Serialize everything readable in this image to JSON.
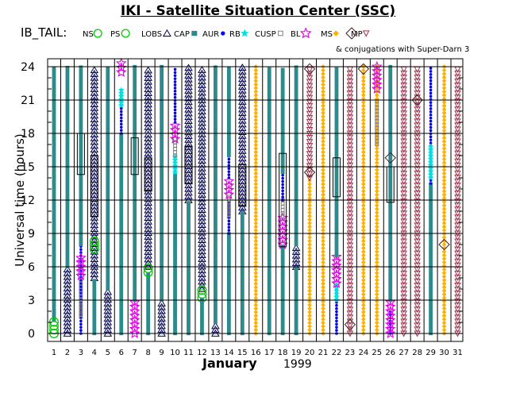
{
  "title": "IKI - Satellite Situation Center (SSC)",
  "chart_data": {
    "type": "scatter",
    "satellite_label": "IB_TAIL:",
    "ylabel": "Universal time (hours)",
    "xlabel_month": "January",
    "xlabel_year": "1999",
    "ylim": [
      0,
      24.5
    ],
    "y_ticks": [
      0,
      3,
      6,
      9,
      12,
      15,
      18,
      21,
      24
    ],
    "days": [
      1,
      2,
      3,
      4,
      5,
      6,
      7,
      8,
      9,
      10,
      11,
      12,
      13,
      14,
      15,
      16,
      17,
      18,
      19,
      20,
      21,
      22,
      23,
      24,
      25,
      26,
      27,
      28,
      29,
      30,
      31
    ],
    "legend": [
      {
        "code": "NS",
        "symbol": "circle",
        "color": "#00cc00"
      },
      {
        "code": "PS",
        "symbol": "circle",
        "color": "#00cc00"
      },
      {
        "code": "LOBS",
        "symbol": "triangle",
        "color": "#000080"
      },
      {
        "code": "CAP",
        "symbol": "square",
        "color": "#2e8b8b"
      },
      {
        "code": "AUR",
        "symbol": "dot",
        "color": "#0000ff"
      },
      {
        "code": "RB",
        "symbol": "star",
        "color": "#00e0e0"
      },
      {
        "code": "CUSP",
        "symbol": "square-open",
        "color": "#808080"
      },
      {
        "code": "BL",
        "symbol": "star-open",
        "color": "#e000e0"
      },
      {
        "code": "MS",
        "symbol": "diamond",
        "color": "#ffb000"
      },
      {
        "code": "MP",
        "symbol": "triangle-down",
        "color": "#a0304a"
      }
    ],
    "conjugation_label": "& conjugations with Super-Darn 3",
    "series": [
      {
        "day": 1,
        "segments": [
          {
            "region": "CAP",
            "from": 1.2,
            "to": 24
          },
          {
            "region": "NS",
            "from": 0,
            "to": 1.1
          }
        ]
      },
      {
        "day": 2,
        "segments": [
          {
            "region": "LOBS",
            "from": 0,
            "to": 6
          },
          {
            "region": "CAP",
            "from": 6,
            "to": 24
          }
        ]
      },
      {
        "day": 3,
        "segments": [
          {
            "region": "AUR",
            "from": 0,
            "to": 8
          },
          {
            "region": "CUSP",
            "from": 1.5,
            "to": 5
          },
          {
            "region": "BL",
            "from": 5.2,
            "to": 6.8
          },
          {
            "region": "CAP",
            "from": 8,
            "to": 24
          }
        ],
        "boxes": [
          [
            14.3,
            18
          ]
        ]
      },
      {
        "day": 4,
        "segments": [
          {
            "region": "LOBS",
            "from": 5,
            "to": 24
          },
          {
            "region": "CAP",
            "from": 0,
            "to": 5
          },
          {
            "region": "PS",
            "from": 7.6,
            "to": 8.6
          }
        ],
        "boxes": [
          [
            10.5,
            16
          ]
        ]
      },
      {
        "day": 5,
        "segments": [
          {
            "region": "LOBS",
            "from": 0,
            "to": 4
          },
          {
            "region": "CAP",
            "from": 4,
            "to": 24
          }
        ]
      },
      {
        "day": 6,
        "segments": [
          {
            "region": "CAP",
            "from": 0,
            "to": 18
          },
          {
            "region": "AUR",
            "from": 18,
            "to": 21
          },
          {
            "region": "RB",
            "from": 20.5,
            "to": 22
          },
          {
            "region": "BL",
            "from": 23.5,
            "to": 24.5
          }
        ]
      },
      {
        "day": 7,
        "segments": [
          {
            "region": "BL",
            "from": 0,
            "to": 3
          },
          {
            "region": "CAP",
            "from": 3,
            "to": 24
          }
        ],
        "boxes": [
          [
            14.3,
            17.6
          ]
        ]
      },
      {
        "day": 8,
        "segments": [
          {
            "region": "LOBS",
            "from": 6,
            "to": 24
          },
          {
            "region": "CAP",
            "from": 0,
            "to": 5.5
          },
          {
            "region": "PS",
            "from": 5.5,
            "to": 6
          }
        ],
        "boxes": [
          [
            12.8,
            15.8
          ]
        ]
      },
      {
        "day": 9,
        "segments": [
          {
            "region": "LOBS",
            "from": 0,
            "to": 3
          },
          {
            "region": "CAP",
            "from": 3,
            "to": 24
          }
        ]
      },
      {
        "day": 10,
        "segments": [
          {
            "region": "CAP",
            "from": 0,
            "to": 14.5
          },
          {
            "region": "RB",
            "from": 14.5,
            "to": 16
          },
          {
            "region": "CUSP",
            "from": 16,
            "to": 17.5
          },
          {
            "region": "BL",
            "from": 17.5,
            "to": 19
          },
          {
            "region": "AUR",
            "from": 19,
            "to": 24
          }
        ]
      },
      {
        "day": 11,
        "segments": [
          {
            "region": "LOBS",
            "from": 12,
            "to": 24
          },
          {
            "region": "CAP",
            "from": 0,
            "to": 12
          }
        ],
        "boxes": [
          [
            13.5,
            16.8
          ]
        ]
      },
      {
        "day": 12,
        "segments": [
          {
            "region": "LOBS",
            "from": 4,
            "to": 24
          },
          {
            "region": "PS",
            "from": 3.2,
            "to": 4
          },
          {
            "region": "CAP",
            "from": 0,
            "to": 3.2
          }
        ]
      },
      {
        "day": 13,
        "segments": [
          {
            "region": "LOBS",
            "from": 0,
            "to": 1
          },
          {
            "region": "CAP",
            "from": 1,
            "to": 24
          }
        ]
      },
      {
        "day": 14,
        "segments": [
          {
            "region": "CAP",
            "from": 0,
            "to": 9
          },
          {
            "region": "AUR",
            "from": 9,
            "to": 12
          },
          {
            "region": "CUSP",
            "from": 10.5,
            "to": 12.5
          },
          {
            "region": "BL",
            "from": 12.5,
            "to": 14
          },
          {
            "region": "AUR",
            "from": 14,
            "to": 16
          },
          {
            "region": "CAP",
            "from": 16,
            "to": 24
          }
        ]
      },
      {
        "day": 15,
        "segments": [
          {
            "region": "LOBS",
            "from": 11,
            "to": 24
          },
          {
            "region": "CAP",
            "from": 0,
            "to": 11
          }
        ],
        "boxes": [
          [
            11.5,
            15.2
          ]
        ]
      },
      {
        "day": 16,
        "segments": [
          {
            "region": "MS",
            "from": 0,
            "to": 24
          }
        ]
      },
      {
        "day": 17,
        "segments": [
          {
            "region": "CAP",
            "from": 0,
            "to": 24
          }
        ]
      },
      {
        "day": 18,
        "segments": [
          {
            "region": "CAP",
            "from": 0,
            "to": 8
          },
          {
            "region": "BL",
            "from": 8,
            "to": 10.5
          },
          {
            "region": "CUSP",
            "from": 10.5,
            "to": 12
          },
          {
            "region": "AUR",
            "from": 12,
            "to": 14.5
          },
          {
            "region": "CAP",
            "from": 14.5,
            "to": 24
          }
        ],
        "boxes": [
          [
            7.8,
            16.2
          ]
        ]
      },
      {
        "day": 19,
        "segments": [
          {
            "region": "LOBS",
            "from": 6,
            "to": 8
          },
          {
            "region": "CAP",
            "from": 0,
            "to": 6
          },
          {
            "region": "CAP",
            "from": 8,
            "to": 24
          }
        ]
      },
      {
        "day": 20,
        "segments": [
          {
            "region": "MS",
            "from": 0,
            "to": 14
          },
          {
            "region": "MP",
            "from": 14,
            "to": 24
          }
        ],
        "diamonds": [
          14.5,
          23.8
        ]
      },
      {
        "day": 21,
        "segments": [
          {
            "region": "MS",
            "from": 0,
            "to": 24
          }
        ]
      },
      {
        "day": 22,
        "segments": [
          {
            "region": "AUR",
            "from": 0,
            "to": 3
          },
          {
            "region": "RB",
            "from": 3,
            "to": 4.5
          },
          {
            "region": "BL",
            "from": 4.5,
            "to": 7
          },
          {
            "region": "CAP",
            "from": 7,
            "to": 24
          }
        ],
        "boxes": [
          [
            12.3,
            15.8
          ]
        ]
      },
      {
        "day": 23,
        "segments": [
          {
            "region": "MP",
            "from": 0,
            "to": 24
          }
        ],
        "diamonds": [
          0.8
        ]
      },
      {
        "day": 24,
        "segments": [
          {
            "region": "MS",
            "from": 0,
            "to": 24
          }
        ],
        "diamonds": [
          23.8
        ]
      },
      {
        "day": 25,
        "segments": [
          {
            "region": "MS",
            "from": 0,
            "to": 24
          },
          {
            "region": "CUSP",
            "from": 17,
            "to": 21
          },
          {
            "region": "BL",
            "from": 22,
            "to": 24.3
          }
        ]
      },
      {
        "day": 26,
        "segments": [
          {
            "region": "AUR",
            "from": 0,
            "to": 2
          },
          {
            "region": "BL",
            "from": 0,
            "to": 3
          },
          {
            "region": "CAP",
            "from": 3,
            "to": 24
          }
        ],
        "boxes": [
          [
            11.8,
            15
          ]
        ],
        "diamonds": [
          15.8
        ]
      },
      {
        "day": 27,
        "segments": [
          {
            "region": "MP",
            "from": 0,
            "to": 24
          }
        ]
      },
      {
        "day": 28,
        "segments": [
          {
            "region": "MP",
            "from": 0,
            "to": 24
          }
        ],
        "diamonds": [
          21
        ]
      },
      {
        "day": 29,
        "segments": [
          {
            "region": "CAP",
            "from": 0,
            "to": 13.5
          },
          {
            "region": "AUR",
            "from": 13.5,
            "to": 24
          },
          {
            "region": "RB",
            "from": 14,
            "to": 17
          }
        ]
      },
      {
        "day": 30,
        "segments": [
          {
            "region": "MS",
            "from": 0,
            "to": 24
          }
        ],
        "diamonds": [
          8
        ]
      },
      {
        "day": 31,
        "segments": [
          {
            "region": "MP",
            "from": 0,
            "to": 24
          }
        ]
      }
    ]
  }
}
